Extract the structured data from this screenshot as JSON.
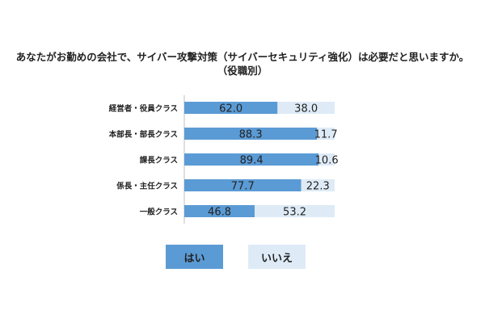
{
  "title": {
    "line1": "あなたがお勤めの会社で、サイバー攻撃対策（サイバーセキュリティ強化）は必要だと思いますか。",
    "line2": "（役職別）"
  },
  "colors": {
    "yes": "#5b9bd5",
    "no": "#deebf7",
    "text": "#222222",
    "axis": "#bfbfbf"
  },
  "chart_data": {
    "type": "bar",
    "orientation": "horizontal",
    "stacked": true,
    "percent_stacked": true,
    "categories": [
      "経営者・役員クラス",
      "本部長・部長クラス",
      "課長クラス",
      "係長・主任クラス",
      "一般クラス"
    ],
    "series": [
      {
        "name": "はい",
        "values": [
          62.0,
          88.3,
          89.4,
          77.7,
          46.8
        ]
      },
      {
        "name": "いいえ",
        "values": [
          38.0,
          11.7,
          10.6,
          22.3,
          53.2
        ]
      }
    ],
    "xlim": [
      0,
      100
    ],
    "legend_position": "bottom",
    "grid": false
  }
}
